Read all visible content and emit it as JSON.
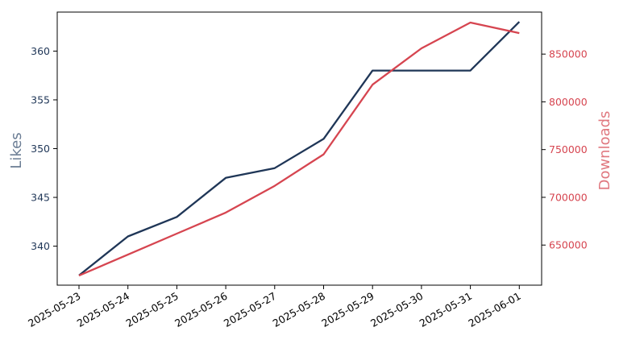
{
  "chart_data": {
    "type": "line",
    "x": [
      "2025-05-23",
      "2025-05-24",
      "2025-05-25",
      "2025-05-26",
      "2025-05-27",
      "2025-05-28",
      "2025-05-29",
      "2025-05-30",
      "2025-05-31",
      "2025-06-01"
    ],
    "title": "",
    "xlabel": "",
    "grid": false,
    "legend": "none",
    "y_left": {
      "label": "Likes",
      "range": [
        336,
        364
      ],
      "ticks": [
        340,
        345,
        350,
        355,
        360
      ],
      "tick_color": "#1f3657",
      "label_color": "#6b7d94"
    },
    "y_right": {
      "label": "Downloads",
      "range": [
        608000,
        894000
      ],
      "ticks": [
        650000,
        700000,
        750000,
        800000,
        850000
      ],
      "tick_color": "#d64550",
      "label_color": "#e0787f"
    },
    "series": [
      {
        "name": "",
        "axis": "left",
        "color": "#1f3657",
        "values": [
          337,
          341,
          343,
          347,
          348,
          351,
          358,
          358,
          358,
          363
        ]
      },
      {
        "name": "",
        "axis": "right",
        "color": "#d64550",
        "values": [
          618000,
          640000,
          662000,
          684000,
          712000,
          745000,
          818000,
          856000,
          883000,
          872000
        ]
      }
    ]
  }
}
